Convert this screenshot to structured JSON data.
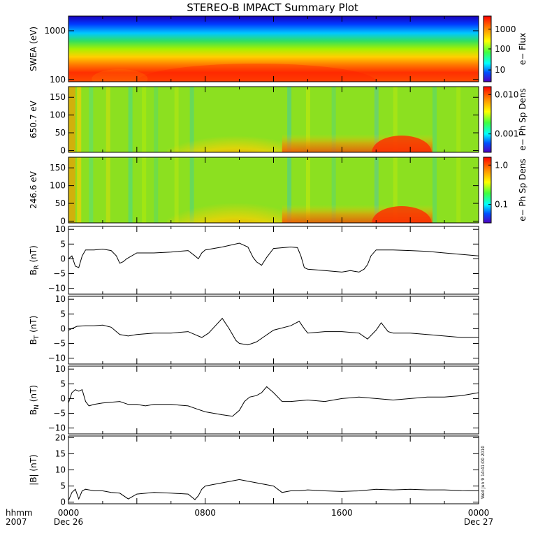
{
  "title": "STEREO-B IMPACT Summary Plot",
  "stamp": "Wed Jun  9 14:41:00 2010",
  "x_axis": {
    "ticks": [
      {
        "t": 0,
        "label": "0000",
        "sub": "Dec 26"
      },
      {
        "t": 8,
        "label": "0800",
        "sub": ""
      },
      {
        "t": 16,
        "label": "1600",
        "sub": ""
      },
      {
        "t": 24,
        "label": "0000",
        "sub": "Dec 27"
      }
    ],
    "left_label_1": "hhmm",
    "left_label_2": "2007"
  },
  "chart_data": [
    {
      "type": "heatmap",
      "id": "swea",
      "ylabel": "SWEA (eV)",
      "yscale": "log",
      "yticks": [
        {
          "v": 100,
          "label": "100"
        },
        {
          "v": 1000,
          "label": "1000"
        }
      ],
      "ylim": [
        90,
        2000
      ],
      "colorbar": {
        "label": "e− Flux",
        "ticks": [
          "1000",
          "100",
          "10"
        ]
      }
    },
    {
      "type": "heatmap",
      "id": "pad650",
      "ylabel": "650.7 eV",
      "yticks": [
        {
          "v": 0,
          "label": "0"
        },
        {
          "v": 50,
          "label": "50"
        },
        {
          "v": 100,
          "label": "100"
        },
        {
          "v": 150,
          "label": "150"
        }
      ],
      "ylim": [
        -5,
        180
      ],
      "colorbar": {
        "label": "e− Ph Sp Dens",
        "ticks": [
          "0.010",
          "0.001"
        ]
      }
    },
    {
      "type": "heatmap",
      "id": "pad246",
      "ylabel": "246.6 eV",
      "yticks": [
        {
          "v": 0,
          "label": "0"
        },
        {
          "v": 50,
          "label": "50"
        },
        {
          "v": 100,
          "label": "100"
        },
        {
          "v": 150,
          "label": "150"
        }
      ],
      "ylim": [
        -5,
        180
      ],
      "colorbar": {
        "label": "e− Ph Sp Dens",
        "ticks": [
          "1.0",
          "0.1"
        ]
      }
    },
    {
      "type": "line",
      "id": "br",
      "ylabel_main": "B",
      "ylabel_sub": "R",
      "ylabel_unit": " (nT)",
      "ylim": [
        -12,
        11
      ],
      "yticks": [
        {
          "v": 10,
          "label": "10"
        },
        {
          "v": 5,
          "label": "5"
        },
        {
          "v": 0,
          "label": "0"
        },
        {
          "v": -5,
          "label": "−5"
        },
        {
          "v": -10,
          "label": "−10"
        }
      ],
      "x": [
        0,
        0.2,
        0.4,
        0.6,
        0.8,
        1.0,
        1.5,
        2.0,
        2.5,
        2.8,
        3.0,
        3.2,
        3.4,
        4.0,
        5.0,
        6.0,
        7.0,
        7.4,
        7.6,
        7.8,
        8.0,
        9.0,
        10.0,
        10.5,
        10.8,
        11.0,
        11.3,
        11.6,
        12.0,
        13.0,
        13.4,
        13.6,
        13.8,
        14.0,
        15.0,
        16.0,
        16.5,
        17.0,
        17.3,
        17.5,
        17.7,
        18.0,
        19.0,
        20.0,
        21.0,
        22.0,
        23.0,
        24.0
      ],
      "values": [
        0,
        1.0,
        -2.5,
        -3.0,
        1.0,
        3.0,
        3.0,
        3.3,
        2.8,
        1.0,
        -1.5,
        -1.0,
        0.0,
        2.0,
        2.0,
        2.3,
        2.8,
        1.0,
        0.0,
        2.0,
        3.0,
        4.0,
        5.3,
        4.0,
        0.5,
        -1.0,
        -2.2,
        0.5,
        3.5,
        4.0,
        3.8,
        1.0,
        -3.0,
        -3.5,
        -4.0,
        -4.5,
        -4.0,
        -4.5,
        -3.5,
        -2.0,
        1.0,
        3.0,
        3.0,
        2.8,
        2.5,
        2.0,
        1.5,
        1.0
      ]
    },
    {
      "type": "line",
      "id": "bt",
      "ylabel_main": "B",
      "ylabel_sub": "T",
      "ylabel_unit": " (nT)",
      "ylim": [
        -12,
        11
      ],
      "yticks": [
        {
          "v": 10,
          "label": "10"
        },
        {
          "v": 5,
          "label": "5"
        },
        {
          "v": 0,
          "label": "0"
        },
        {
          "v": -5,
          "label": "−5"
        },
        {
          "v": -10,
          "label": "−10"
        }
      ],
      "x": [
        0,
        0.5,
        1.0,
        1.5,
        2.0,
        2.5,
        3.0,
        3.5,
        4.0,
        5.0,
        6.0,
        7.0,
        7.4,
        7.8,
        8.2,
        8.6,
        9.0,
        9.4,
        9.8,
        10.0,
        10.5,
        11.0,
        11.5,
        12.0,
        13.0,
        13.5,
        13.8,
        14.0,
        15.0,
        16.0,
        17.0,
        17.5,
        18.0,
        18.3,
        18.7,
        19.0,
        20.0,
        21.0,
        22.0,
        23.0,
        24.0
      ],
      "values": [
        -0.5,
        0.8,
        1.0,
        1.0,
        1.2,
        0.5,
        -2.0,
        -2.5,
        -2.0,
        -1.5,
        -1.5,
        -1.0,
        -2.0,
        -3.0,
        -1.5,
        1.0,
        3.5,
        0.0,
        -4.0,
        -5.0,
        -5.5,
        -4.5,
        -2.5,
        -0.5,
        1.0,
        2.5,
        0.0,
        -1.5,
        -1.0,
        -1.0,
        -1.5,
        -3.5,
        -0.5,
        2.0,
        -1.0,
        -1.5,
        -1.5,
        -2.0,
        -2.5,
        -3.0,
        -3.0
      ]
    },
    {
      "type": "line",
      "id": "bn",
      "ylabel_main": "B",
      "ylabel_sub": "N",
      "ylabel_unit": " (nT)",
      "ylim": [
        -12,
        11
      ],
      "yticks": [
        {
          "v": 10,
          "label": "10"
        },
        {
          "v": 5,
          "label": "5"
        },
        {
          "v": 0,
          "label": "0"
        },
        {
          "v": -5,
          "label": "−5"
        },
        {
          "v": -10,
          "label": "−10"
        }
      ],
      "x": [
        0,
        0.2,
        0.4,
        0.6,
        0.8,
        1.0,
        1.2,
        1.5,
        2.0,
        3.0,
        3.5,
        4.0,
        4.5,
        5.0,
        6.0,
        7.0,
        7.5,
        8.0,
        9.0,
        9.6,
        10.0,
        10.3,
        10.6,
        11.0,
        11.3,
        11.6,
        12.0,
        12.5,
        13.0,
        14.0,
        15.0,
        16.0,
        17.0,
        18.0,
        19.0,
        20.0,
        21.0,
        22.0,
        23.0,
        24.0
      ],
      "values": [
        -1.5,
        2.0,
        3.0,
        2.5,
        3.0,
        -1.0,
        -2.5,
        -2.0,
        -1.5,
        -1.0,
        -2.0,
        -2.0,
        -2.5,
        -2.0,
        -2.0,
        -2.5,
        -3.5,
        -4.5,
        -5.5,
        -6.0,
        -4.0,
        -1.0,
        0.5,
        1.0,
        2.0,
        4.0,
        2.0,
        -1.0,
        -1.0,
        -0.5,
        -1.0,
        0.0,
        0.5,
        0.0,
        -0.5,
        0.0,
        0.5,
        0.5,
        1.0,
        2.0
      ]
    },
    {
      "type": "line",
      "id": "bmag",
      "ylabel_main": "|B|",
      "ylabel_sub": "",
      "ylabel_unit": " (nT)",
      "ylim": [
        -0.5,
        20.5
      ],
      "yticks": [
        {
          "v": 20,
          "label": "20"
        },
        {
          "v": 15,
          "label": "15"
        },
        {
          "v": 10,
          "label": "10"
        },
        {
          "v": 5,
          "label": "5"
        },
        {
          "v": 0,
          "label": "0"
        }
      ],
      "x": [
        0,
        0.2,
        0.4,
        0.6,
        0.8,
        1.0,
        1.5,
        2.0,
        2.5,
        3.0,
        3.5,
        4.0,
        5.0,
        6.0,
        7.0,
        7.4,
        7.6,
        7.8,
        8.0,
        9.0,
        10.0,
        11.0,
        12.0,
        12.5,
        13.0,
        13.5,
        14.0,
        15.0,
        16.0,
        17.0,
        18.0,
        19.0,
        20.0,
        21.0,
        22.0,
        23.0,
        24.0
      ],
      "values": [
        0.5,
        3.0,
        4.0,
        1.0,
        3.5,
        4.0,
        3.5,
        3.5,
        3.0,
        2.8,
        1.0,
        2.5,
        3.0,
        2.8,
        2.5,
        0.8,
        2.0,
        4.0,
        5.0,
        6.0,
        7.0,
        6.0,
        5.0,
        3.0,
        3.5,
        3.5,
        3.8,
        3.5,
        3.3,
        3.5,
        4.0,
        3.8,
        4.0,
        3.8,
        3.8,
        3.6,
        3.5
      ]
    }
  ]
}
